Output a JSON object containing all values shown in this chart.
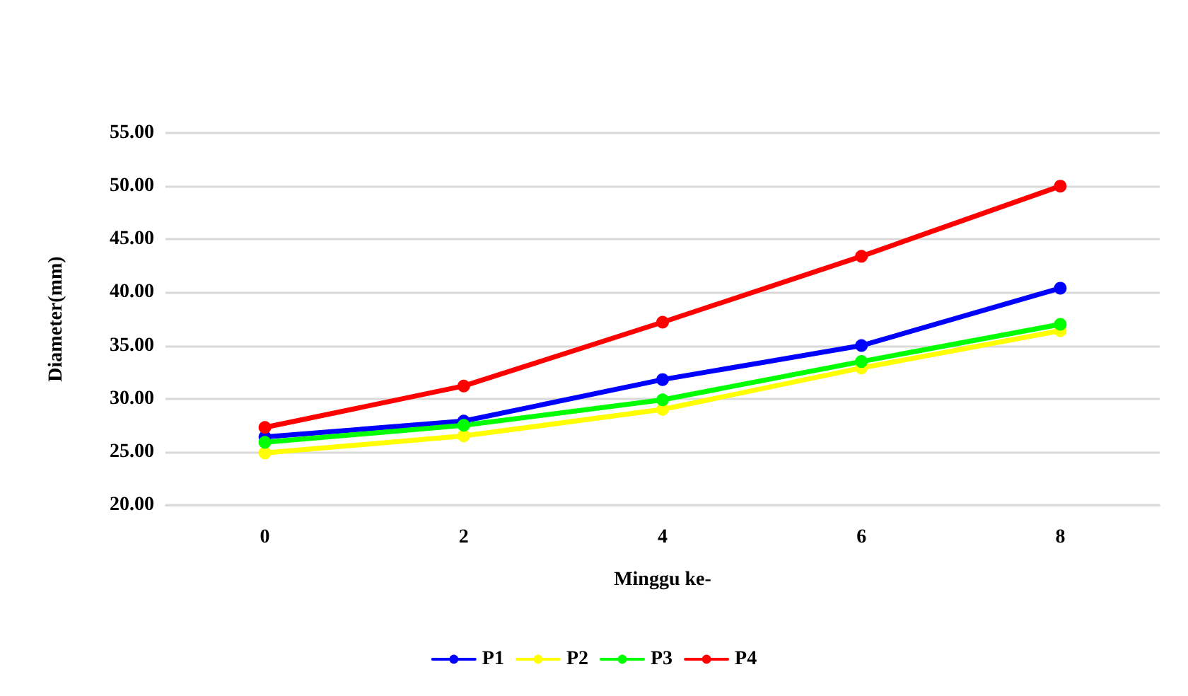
{
  "chart_data": {
    "type": "line",
    "xlabel": "Minggu ke-",
    "ylabel": "Diameter(mm)",
    "categories": [
      "0",
      "2",
      "4",
      "6",
      "8"
    ],
    "series": [
      {
        "name": "P1",
        "color": "#0000ff",
        "values": [
          26.4,
          27.9,
          31.8,
          35.0,
          40.4
        ]
      },
      {
        "name": "P2",
        "color": "#ffff00",
        "values": [
          24.9,
          26.5,
          29.0,
          32.9,
          36.4
        ]
      },
      {
        "name": "P3",
        "color": "#00ff00",
        "values": [
          25.9,
          27.5,
          29.9,
          33.5,
          37.0
        ]
      },
      {
        "name": "P4",
        "color": "#ff0000",
        "values": [
          27.3,
          31.2,
          37.2,
          43.4,
          50.0
        ]
      }
    ],
    "ylim": [
      20,
      55
    ],
    "yticks": [
      {
        "value": 20,
        "label": "20.00"
      },
      {
        "value": 25,
        "label": "25.00"
      },
      {
        "value": 30,
        "label": "30.00"
      },
      {
        "value": 35,
        "label": "35.00"
      },
      {
        "value": 40,
        "label": "40.00"
      },
      {
        "value": 45,
        "label": "45.00"
      },
      {
        "value": 50,
        "label": "50.00"
      },
      {
        "value": 55,
        "label": "55.00"
      }
    ],
    "grid": "y",
    "legend": "bottom",
    "marker": "circle",
    "line_style": "solid"
  }
}
